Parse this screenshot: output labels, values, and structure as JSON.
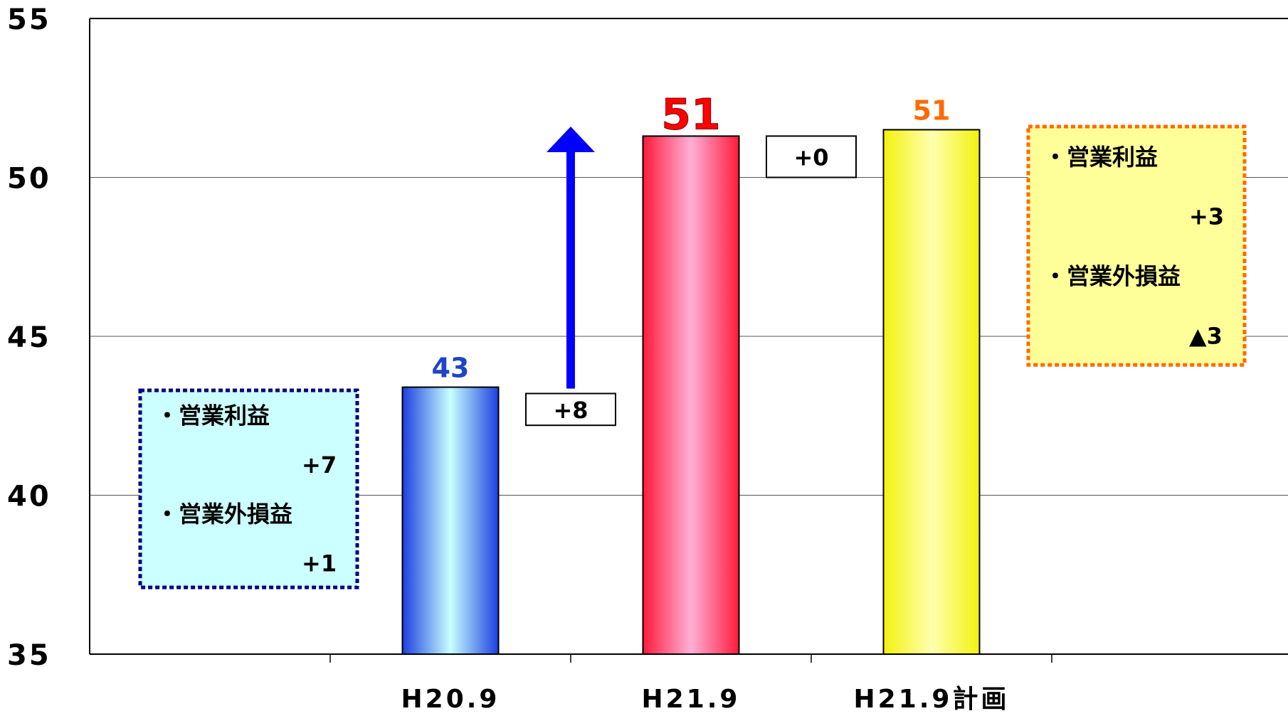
{
  "chart_data": {
    "type": "bar",
    "categories": [
      "H20.9",
      "H21.9",
      "H21.9計画"
    ],
    "values": [
      43.4,
      51.3,
      51.5
    ],
    "data_labels": [
      "43",
      "51",
      "51"
    ],
    "label_colors": [
      "#1e44c8",
      "#ff0000",
      "#ff6a00"
    ],
    "ylim": [
      35,
      55
    ],
    "yticks": [
      35,
      40,
      45,
      50,
      55
    ],
    "grid": true,
    "deltas": [
      {
        "text": "+8",
        "anchor_value": 42.2,
        "box_top_value": 43.2
      },
      {
        "text": "+0",
        "anchor_value": 50.0,
        "box_top_value": 51.3
      }
    ],
    "arrow": {
      "from_value": 43.4,
      "to_value": 51.6,
      "color": "#0000ff"
    },
    "notes": [
      {
        "lines": [
          "・営業利益",
          "+7",
          "・営業外損益",
          "+1"
        ],
        "background": "#ccffff",
        "border": "#000080",
        "top_value": 43.3,
        "bottom_value": 37.1
      },
      {
        "lines": [
          "・営業利益",
          "+3",
          "・営業外損益",
          "▲3"
        ],
        "background": "#ffff99",
        "border": "#ff6a00",
        "top_value": 51.6,
        "bottom_value": 44.1
      }
    ],
    "series_gradients": [
      {
        "edge": "#1c3fe0",
        "center": "#c8ffff"
      },
      {
        "edge": "#ff1a3a",
        "center": "#ffb0d8"
      },
      {
        "edge": "#f2f20f",
        "center": "#ffffb0"
      }
    ]
  }
}
